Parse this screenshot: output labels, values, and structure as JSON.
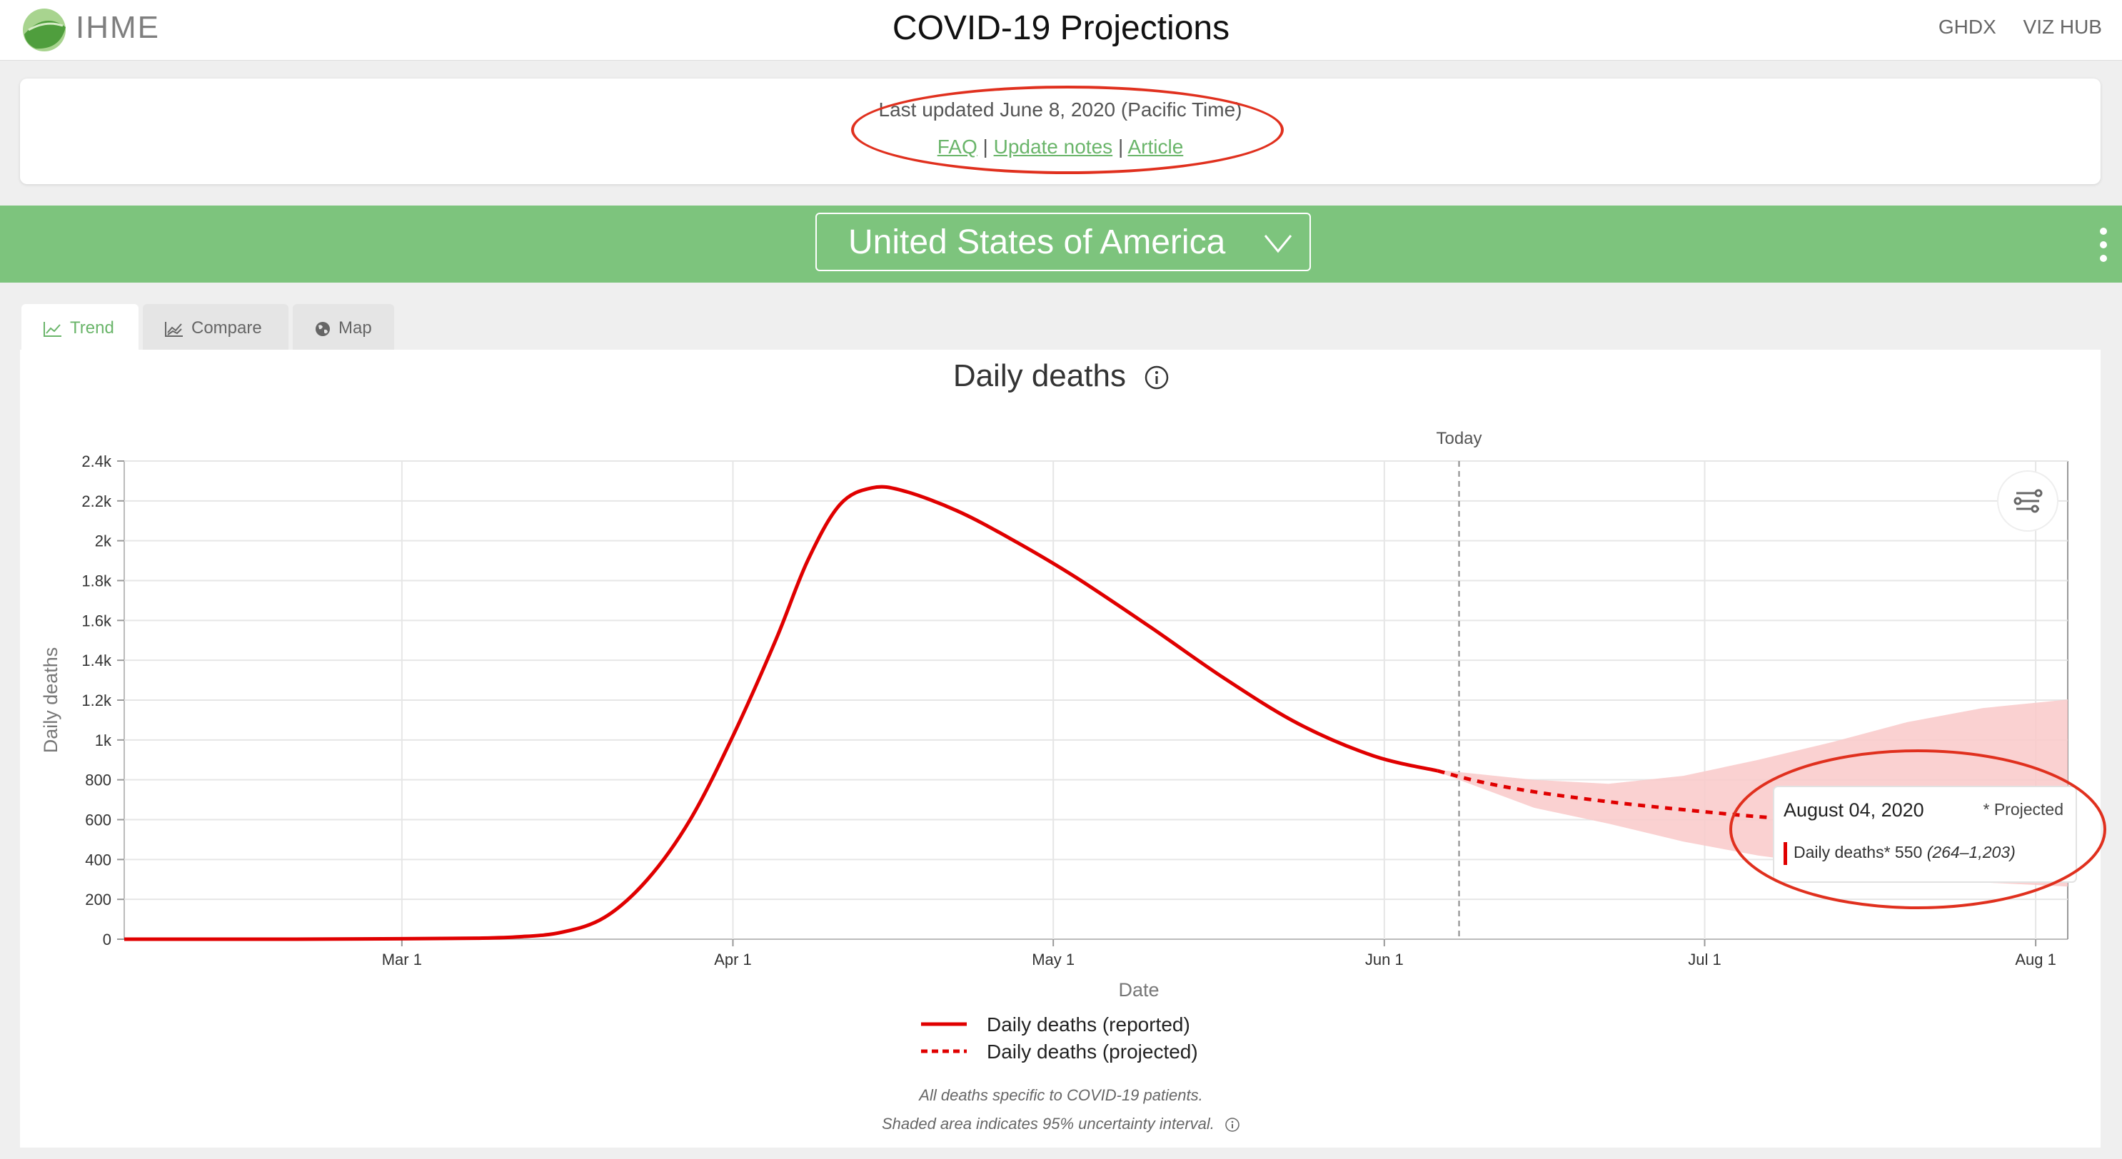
{
  "header": {
    "brand": "IHME",
    "title": "COVID-19 Projections",
    "links": [
      "GHDX",
      "VIZ HUB"
    ]
  },
  "info": {
    "updated": "Last updated June 8, 2020 (Pacific Time)",
    "faq": "FAQ",
    "update_notes": "Update notes",
    "article": "Article",
    "separator": "|"
  },
  "location": {
    "selected": "United States of America"
  },
  "tabs": [
    "Trend",
    "Compare",
    "Map"
  ],
  "chart": {
    "title": "Daily deaths",
    "today_label": "Today",
    "tooltip": {
      "date": "August 04, 2020",
      "note": "* Projected",
      "series": "Daily deaths*",
      "value": "550",
      "interval": "(264–1,203)"
    },
    "legend": [
      "Daily deaths (reported)",
      "Daily deaths (projected)"
    ],
    "footnote1": "All deaths specific to COVID-19 patients.",
    "footnote2": "Shaded area indicates 95% uncertainty interval."
  },
  "chart_data": {
    "type": "line",
    "title": "Daily deaths",
    "xlabel": "Date",
    "ylabel": "Daily deaths",
    "x_range": [
      "2020-02-04",
      "2020-08-04"
    ],
    "ylim": [
      0,
      2400
    ],
    "x_ticks": [
      {
        "date": "2020-03-01",
        "label": "Mar 1"
      },
      {
        "date": "2020-04-01",
        "label": "Apr 1"
      },
      {
        "date": "2020-05-01",
        "label": "May 1"
      },
      {
        "date": "2020-06-01",
        "label": "Jun 1"
      },
      {
        "date": "2020-07-01",
        "label": "Jul 1"
      },
      {
        "date": "2020-08-01",
        "label": "Aug 1"
      }
    ],
    "y_ticks": [
      0,
      200,
      400,
      600,
      800,
      1000,
      1200,
      1400,
      1600,
      1800,
      2000,
      2200,
      2400
    ],
    "y_tick_labels": [
      "0",
      "200",
      "400",
      "600",
      "800",
      "1k",
      "1.2k",
      "1.4k",
      "1.6k",
      "1.8k",
      "2k",
      "2.2k",
      "2.4k"
    ],
    "today": "2020-06-08",
    "grid": true,
    "series": [
      {
        "name": "Daily deaths (reported)",
        "style": "solid",
        "color": "#e00000",
        "points": [
          [
            "2020-02-04",
            0
          ],
          [
            "2020-02-20",
            0
          ],
          [
            "2020-03-01",
            2
          ],
          [
            "2020-03-08",
            5
          ],
          [
            "2020-03-12",
            12
          ],
          [
            "2020-03-16",
            35
          ],
          [
            "2020-03-20",
            110
          ],
          [
            "2020-03-24",
            300
          ],
          [
            "2020-03-28",
            600
          ],
          [
            "2020-04-01",
            1020
          ],
          [
            "2020-04-05",
            1500
          ],
          [
            "2020-04-08",
            1900
          ],
          [
            "2020-04-11",
            2180
          ],
          [
            "2020-04-14",
            2265
          ],
          [
            "2020-04-17",
            2250
          ],
          [
            "2020-04-22",
            2150
          ],
          [
            "2020-04-27",
            2010
          ],
          [
            "2020-05-03",
            1820
          ],
          [
            "2020-05-10",
            1570
          ],
          [
            "2020-05-17",
            1310
          ],
          [
            "2020-05-24",
            1080
          ],
          [
            "2020-05-31",
            920
          ],
          [
            "2020-06-06",
            845
          ]
        ]
      },
      {
        "name": "Daily deaths (projected)",
        "style": "dashed",
        "color": "#e00000",
        "points": [
          [
            "2020-06-06",
            845
          ],
          [
            "2020-06-10",
            790
          ],
          [
            "2020-06-15",
            740
          ],
          [
            "2020-06-22",
            690
          ],
          [
            "2020-06-29",
            650
          ],
          [
            "2020-07-06",
            615
          ],
          [
            "2020-07-13",
            590
          ],
          [
            "2020-07-20",
            575
          ],
          [
            "2020-07-27",
            560
          ],
          [
            "2020-08-04",
            550
          ]
        ],
        "interval_upper": [
          [
            "2020-06-06",
            850
          ],
          [
            "2020-06-15",
            800
          ],
          [
            "2020-06-22",
            780
          ],
          [
            "2020-06-29",
            820
          ],
          [
            "2020-07-06",
            900
          ],
          [
            "2020-07-13",
            990
          ],
          [
            "2020-07-20",
            1090
          ],
          [
            "2020-07-27",
            1160
          ],
          [
            "2020-08-04",
            1203
          ]
        ],
        "interval_lower": [
          [
            "2020-06-06",
            840
          ],
          [
            "2020-06-15",
            660
          ],
          [
            "2020-06-22",
            580
          ],
          [
            "2020-06-29",
            490
          ],
          [
            "2020-07-06",
            420
          ],
          [
            "2020-07-13",
            370
          ],
          [
            "2020-07-20",
            320
          ],
          [
            "2020-07-27",
            285
          ],
          [
            "2020-08-04",
            264
          ]
        ]
      }
    ]
  },
  "colors": {
    "brand_green": "#7dc47d",
    "link_green": "#6ab56a",
    "line_red": "#e00000",
    "band_pink": "#f9c9c9",
    "annotation_red": "#e0301e"
  }
}
